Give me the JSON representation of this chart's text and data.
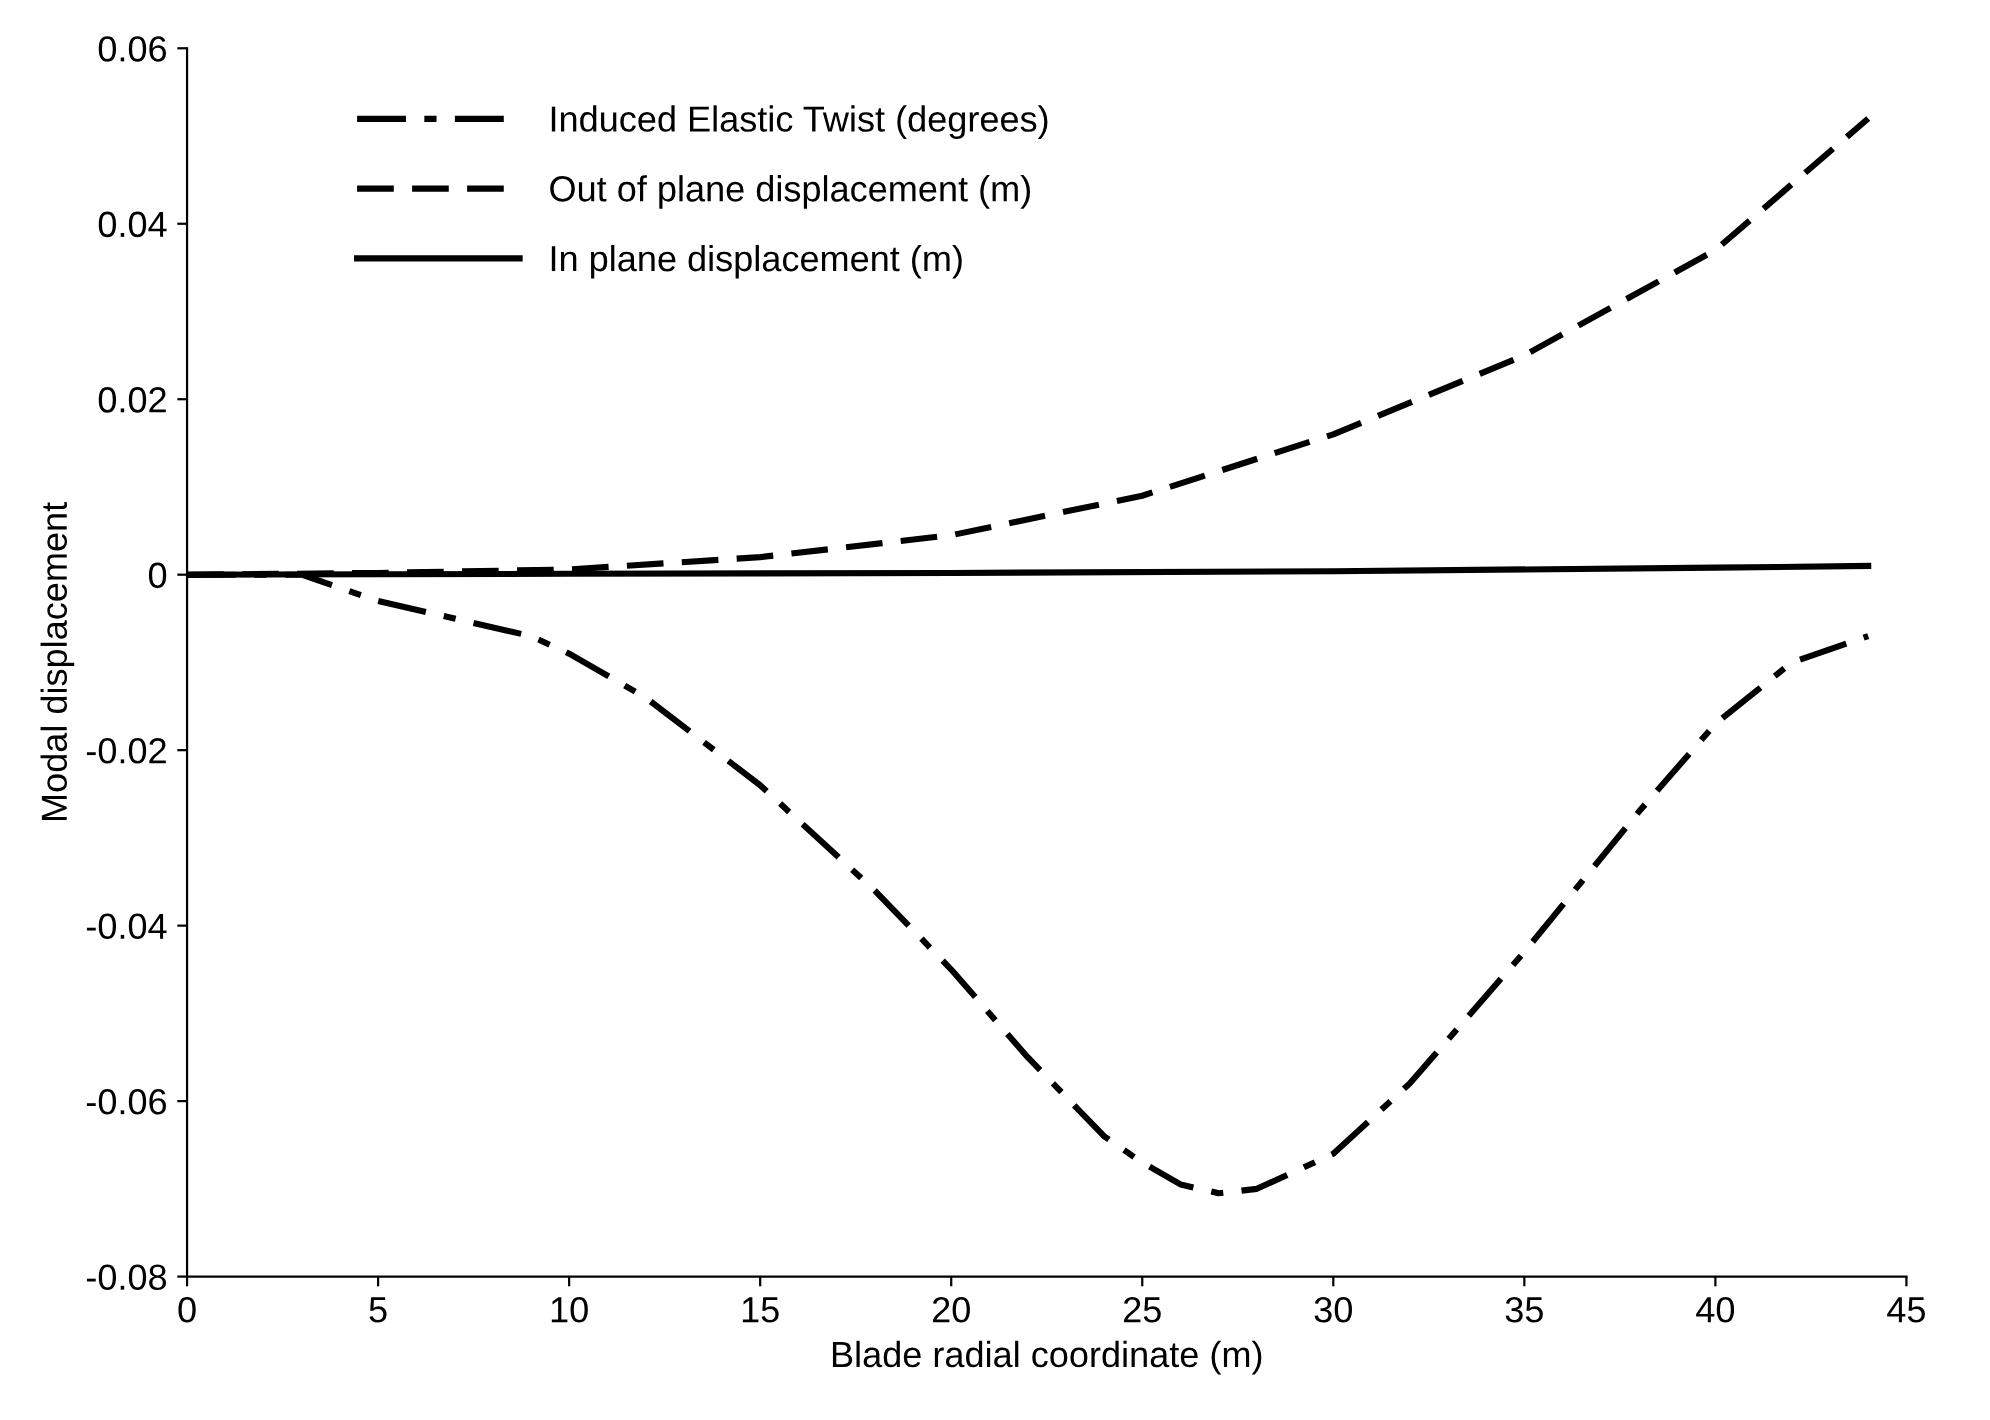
{
  "chart_data": {
    "type": "line",
    "xlabel": "Blade radial coordinate (m)",
    "ylabel": "Modal displacement",
    "xlim": [
      0,
      45
    ],
    "xticks": [
      0,
      5,
      10,
      15,
      20,
      25,
      30,
      35,
      40,
      45
    ],
    "ylim": [
      -0.08,
      0.06
    ],
    "yticks": [
      {
        "value": -0.08,
        "label": "-0.08"
      },
      {
        "value": -0.06,
        "label": "-0.06"
      },
      {
        "value": -0.04,
        "label": "-0.04"
      },
      {
        "value": -0.02,
        "label": "-0.02"
      },
      0,
      0.02,
      0.04,
      0.06
    ],
    "grid": false,
    "legend": "top left",
    "series": [
      {
        "name": "Induced Elastic Twist (degrees)",
        "color": "#000000",
        "line_style": "dashdot",
        "x": [
          0,
          1,
          2,
          3,
          5,
          7,
          9,
          10,
          12,
          15,
          18,
          20,
          22,
          24,
          25,
          26,
          27,
          28,
          30,
          32,
          35,
          38,
          40,
          42,
          44
        ],
        "values": [
          0,
          0,
          0,
          0,
          -0.003,
          -0.005,
          -0.007,
          -0.009,
          -0.014,
          -0.024,
          -0.036,
          -0.045,
          -0.055,
          -0.064,
          -0.067,
          -0.0695,
          -0.0705,
          -0.07,
          -0.066,
          -0.058,
          -0.043,
          -0.027,
          -0.017,
          -0.01,
          -0.007
        ]
      },
      {
        "name": "Out of plane displacement (m)",
        "color": "#000000",
        "line_style": "dashed",
        "x": [
          0,
          5,
          10,
          15,
          20,
          25,
          30,
          35,
          40,
          44
        ],
        "values": [
          0,
          0.0002,
          0.0006,
          0.002,
          0.0045,
          0.009,
          0.016,
          0.025,
          0.037,
          0.052
        ]
      },
      {
        "name": "In plane displacement (m)",
        "color": "#000000",
        "line_style": "solid",
        "x": [
          0,
          10,
          20,
          30,
          40,
          44
        ],
        "values": [
          0,
          0.0001,
          0.0002,
          0.0004,
          0.0008,
          0.001
        ]
      }
    ]
  }
}
